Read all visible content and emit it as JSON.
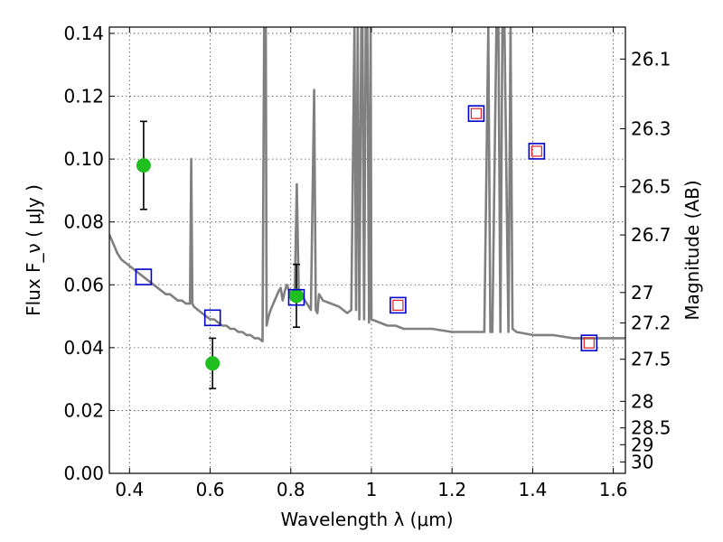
{
  "chart_data": {
    "type": "scatter",
    "xlabel": "Wavelength  λ (μm)",
    "ylabel": "Flux  F_ν  ( μJy )",
    "y2label": "Magnitude (AB)",
    "xlim": [
      0.35,
      1.63
    ],
    "ylim": [
      0.0,
      0.142
    ],
    "grid": true,
    "x_ticks": [
      {
        "value": 0.4,
        "label": "0.4"
      },
      {
        "value": 0.6,
        "label": "0.6"
      },
      {
        "value": 0.8,
        "label": "0.8"
      },
      {
        "value": 1.0,
        "label": "1"
      },
      {
        "value": 1.2,
        "label": "1.2"
      },
      {
        "value": 1.4,
        "label": "1.4"
      },
      {
        "value": 1.6,
        "label": "1.6"
      }
    ],
    "y_ticks": [
      {
        "value": 0.0,
        "label": "0.00"
      },
      {
        "value": 0.02,
        "label": "0.02"
      },
      {
        "value": 0.04,
        "label": "0.04"
      },
      {
        "value": 0.06,
        "label": "0.06"
      },
      {
        "value": 0.08,
        "label": "0.08"
      },
      {
        "value": 0.1,
        "label": "0.10"
      },
      {
        "value": 0.12,
        "label": "0.12"
      },
      {
        "value": 0.14,
        "label": "0.14"
      }
    ],
    "y2_ticks": [
      {
        "value": 26.1,
        "label": "26.1"
      },
      {
        "value": 26.3,
        "label": "26.3"
      },
      {
        "value": 26.5,
        "label": "26.5"
      },
      {
        "value": 26.7,
        "label": "26.7"
      },
      {
        "value": 27.0,
        "label": "27"
      },
      {
        "value": 27.2,
        "label": "27.2"
      },
      {
        "value": 27.5,
        "label": "27.5"
      },
      {
        "value": 28.0,
        "label": "28"
      },
      {
        "value": 28.5,
        "label": "28.5"
      },
      {
        "value": 29.0,
        "label": "29"
      },
      {
        "value": 30.0,
        "label": "30"
      }
    ],
    "sed_model": {
      "color": "#808080",
      "x": [
        0.35,
        0.36,
        0.37,
        0.38,
        0.39,
        0.4,
        0.41,
        0.42,
        0.43,
        0.44,
        0.45,
        0.46,
        0.47,
        0.48,
        0.49,
        0.5,
        0.51,
        0.52,
        0.53,
        0.54,
        0.55,
        0.553,
        0.556,
        0.56,
        0.57,
        0.58,
        0.59,
        0.6,
        0.61,
        0.62,
        0.63,
        0.64,
        0.65,
        0.66,
        0.67,
        0.68,
        0.69,
        0.7,
        0.71,
        0.72,
        0.73,
        0.734,
        0.738,
        0.74,
        0.745,
        0.75,
        0.76,
        0.77,
        0.775,
        0.78,
        0.785,
        0.79,
        0.8,
        0.805,
        0.81,
        0.815,
        0.82,
        0.83,
        0.84,
        0.85,
        0.858,
        0.862,
        0.866,
        0.87,
        0.88,
        0.9,
        0.92,
        0.94,
        0.95,
        0.958,
        0.962,
        0.966,
        0.97,
        0.975,
        0.978,
        0.982,
        0.986,
        0.99,
        0.994,
        0.998,
        1.0,
        1.02,
        1.04,
        1.06,
        1.08,
        1.1,
        1.15,
        1.2,
        1.25,
        1.28,
        1.29,
        1.295,
        1.3,
        1.31,
        1.315,
        1.32,
        1.325,
        1.33,
        1.34,
        1.345,
        1.35,
        1.36,
        1.4,
        1.45,
        1.5,
        1.55,
        1.6,
        1.63
      ],
      "y": [
        0.076,
        0.073,
        0.07,
        0.068,
        0.067,
        0.066,
        0.065,
        0.064,
        0.063,
        0.062,
        0.061,
        0.06,
        0.059,
        0.058,
        0.057,
        0.057,
        0.056,
        0.055,
        0.055,
        0.054,
        0.054,
        0.1,
        0.054,
        0.053,
        0.052,
        0.051,
        0.05,
        0.049,
        0.049,
        0.048,
        0.047,
        0.047,
        0.046,
        0.046,
        0.045,
        0.045,
        0.044,
        0.044,
        0.043,
        0.043,
        0.042,
        0.142,
        0.142,
        0.047,
        0.05,
        0.052,
        0.055,
        0.058,
        0.059,
        0.055,
        0.058,
        0.06,
        0.057,
        0.058,
        0.058,
        0.092,
        0.056,
        0.056,
        0.054,
        0.052,
        0.122,
        0.052,
        0.051,
        0.057,
        0.055,
        0.054,
        0.053,
        0.051,
        0.052,
        0.142,
        0.052,
        0.142,
        0.049,
        0.142,
        0.142,
        0.049,
        0.142,
        0.142,
        0.048,
        0.142,
        0.049,
        0.048,
        0.047,
        0.047,
        0.046,
        0.046,
        0.046,
        0.045,
        0.045,
        0.045,
        0.142,
        0.045,
        0.045,
        0.142,
        0.142,
        0.045,
        0.142,
        0.142,
        0.045,
        0.142,
        0.046,
        0.045,
        0.044,
        0.044,
        0.043,
        0.043,
        0.043,
        0.043
      ]
    },
    "series": [
      {
        "marker": "circle",
        "color": "#1fbf1f",
        "points": [
          {
            "x": 0.435,
            "y": 0.098,
            "yerr": 0.014
          },
          {
            "x": 0.606,
            "y": 0.035,
            "yerr": 0.008
          },
          {
            "x": 0.814,
            "y": 0.0565,
            "yerr": 0.01
          }
        ]
      },
      {
        "marker": "square-open-blue",
        "color": "#0000cc",
        "points": [
          {
            "x": 0.435,
            "y": 0.0625
          },
          {
            "x": 0.606,
            "y": 0.0495
          },
          {
            "x": 0.814,
            "y": 0.056
          },
          {
            "x": 1.066,
            "y": 0.0535
          },
          {
            "x": 1.26,
            "y": 0.1145
          },
          {
            "x": 1.41,
            "y": 0.1025
          },
          {
            "x": 1.54,
            "y": 0.0415
          }
        ]
      },
      {
        "marker": "square-open-red",
        "color": "#e02020",
        "points": [
          {
            "x": 1.066,
            "y": 0.0535
          },
          {
            "x": 1.26,
            "y": 0.1145
          },
          {
            "x": 1.41,
            "y": 0.1025
          },
          {
            "x": 1.54,
            "y": 0.0415
          }
        ]
      }
    ]
  }
}
